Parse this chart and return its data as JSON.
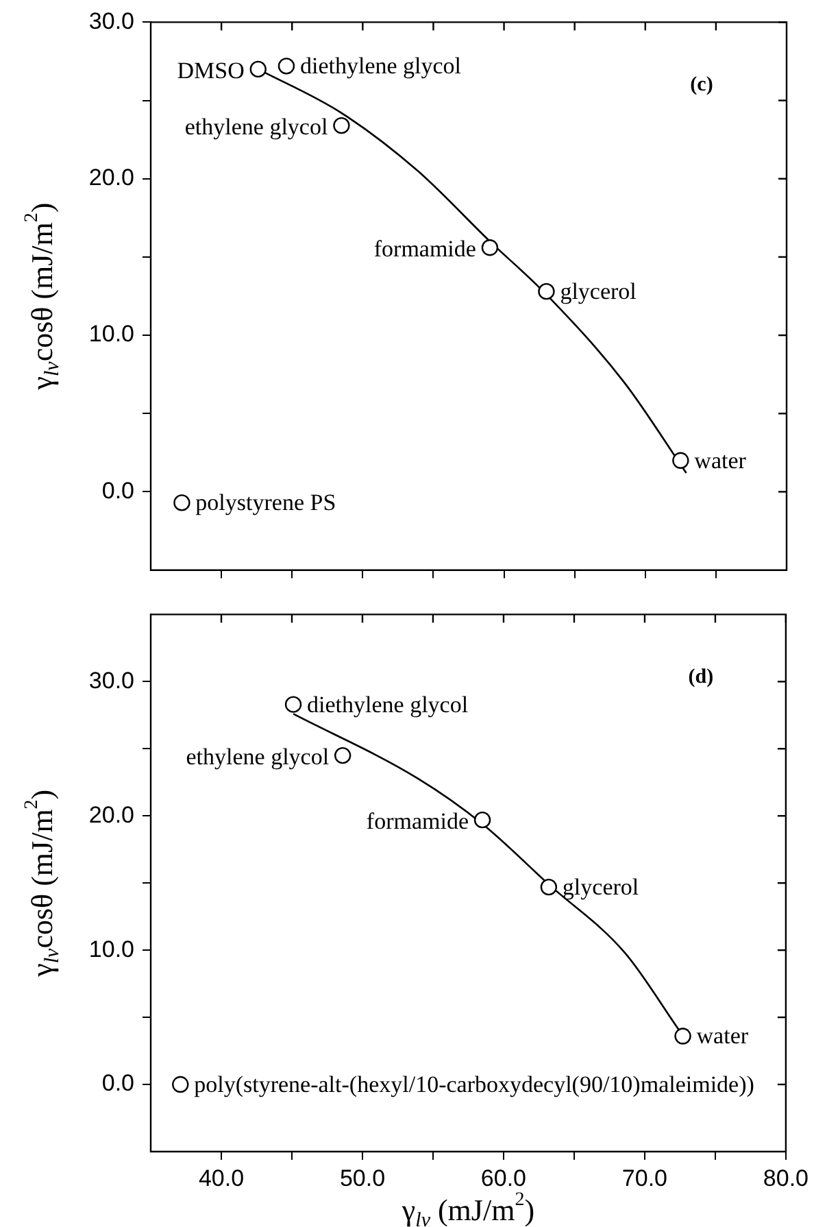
{
  "chart_data": [
    {
      "type": "scatter",
      "ylabel": "γ$_{lv}$cosθ (mJ/m$^{2}$)",
      "xlim": [
        35,
        80
      ],
      "ylim": [
        -5,
        30
      ],
      "xticks": [
        {
          "value": 40,
          "label": null
        },
        {
          "value": 45,
          "label": null
        },
        {
          "value": 50,
          "label": null
        },
        {
          "value": 55,
          "label": null
        },
        {
          "value": 60,
          "label": null
        },
        {
          "value": 65,
          "label": null
        },
        {
          "value": 70,
          "label": null
        },
        {
          "value": 75,
          "label": null
        }
      ],
      "yticks": [
        {
          "value": 0,
          "label": "0.0"
        },
        {
          "value": 5,
          "label": null
        },
        {
          "value": 10,
          "label": "10.0"
        },
        {
          "value": 15,
          "label": null
        },
        {
          "value": 20,
          "label": "20.0"
        },
        {
          "value": 25,
          "label": null
        },
        {
          "value": 30,
          "label": "30.0"
        }
      ],
      "tick_labels": "y",
      "grid": false,
      "legend": false,
      "series": [
        {
          "type": "scatter",
          "color": "#000000",
          "marker": "circle",
          "x": [
            42.6,
            44.6,
            48.5,
            59.0,
            63.0,
            72.5,
            37.2
          ],
          "values": [
            27.0,
            27.2,
            23.4,
            15.6,
            12.8,
            2.0,
            -0.7
          ]
        },
        {
          "type": "line",
          "color": "#000000",
          "marker": "none",
          "line_style": "solid",
          "x": [
            42.6,
            48.5,
            53.9,
            59.0,
            63.0,
            68.5,
            72.9
          ],
          "values": [
            27.0,
            24.2,
            20.5,
            16.0,
            12.6,
            7.0,
            1.2
          ]
        }
      ],
      "annotations": [
        {
          "text": "DMSO",
          "x": 42.6,
          "y": 27.0
        },
        {
          "text": "diethylene glycol",
          "x": 44.6,
          "y": 27.2
        },
        {
          "text": "ethylene glycol",
          "x": 48.5,
          "y": 23.4
        },
        {
          "text": "formamide",
          "x": 59.0,
          "y": 15.6
        },
        {
          "text": "glycerol",
          "x": 63.0,
          "y": 12.8
        },
        {
          "text": "water",
          "x": 72.5,
          "y": 2.0
        },
        {
          "text": "polystyrene PS",
          "x": 37.2,
          "y": -0.7
        },
        "(c)"
      ]
    },
    {
      "type": "scatter",
      "xlabel": "γ$_{lv}$ (mJ/m$^{2}$)",
      "ylabel": "γ$_{lv}$cosθ (mJ/m$^{2}$)",
      "xlim": [
        35,
        80
      ],
      "ylim": [
        -5,
        35
      ],
      "xticks": [
        {
          "value": 40,
          "label": "40.0"
        },
        {
          "value": 45,
          "label": null
        },
        {
          "value": 50,
          "label": "50.0"
        },
        {
          "value": 55,
          "label": null
        },
        {
          "value": 60,
          "label": "60.0"
        },
        {
          "value": 65,
          "label": null
        },
        {
          "value": 70,
          "label": "70.0"
        },
        {
          "value": 75,
          "label": null
        },
        {
          "value": 80,
          "label": "80.0"
        }
      ],
      "yticks": [
        {
          "value": 0,
          "label": "0.0"
        },
        {
          "value": 5,
          "label": null
        },
        {
          "value": 10,
          "label": "10.0"
        },
        {
          "value": 15,
          "label": null
        },
        {
          "value": 20,
          "label": "20.0"
        },
        {
          "value": 25,
          "label": null
        },
        {
          "value": 30,
          "label": "30.0"
        }
      ],
      "grid": false,
      "legend": false,
      "series": [
        {
          "type": "scatter",
          "color": "#000000",
          "marker": "circle",
          "x": [
            45.1,
            48.6,
            58.5,
            63.2,
            72.7,
            37.1
          ],
          "values": [
            28.3,
            24.5,
            19.7,
            14.7,
            3.6,
            0.0
          ]
        },
        {
          "type": "line",
          "color": "#000000",
          "marker": "none",
          "line_style": "solid",
          "x": [
            45.1,
            53.9,
            58.5,
            63.2,
            68.6,
            72.4
          ],
          "values": [
            27.6,
            22.8,
            19.4,
            14.9,
            9.8,
            4.1
          ]
        }
      ],
      "annotations": [
        {
          "text": "diethylene glycol",
          "x": 45.1,
          "y": 28.3
        },
        {
          "text": "ethylene glycol",
          "x": 48.6,
          "y": 24.5
        },
        {
          "text": "formamide",
          "x": 58.5,
          "y": 19.7
        },
        {
          "text": "glycerol",
          "x": 63.2,
          "y": 14.7
        },
        {
          "text": "water",
          "x": 72.7,
          "y": 3.6
        },
        {
          "text": "poly(styrene-alt-(hexyl/10-carboxydecyl(90/10)maleimide))",
          "x": 37.1,
          "y": 0.0
        },
        "(d)"
      ]
    }
  ]
}
